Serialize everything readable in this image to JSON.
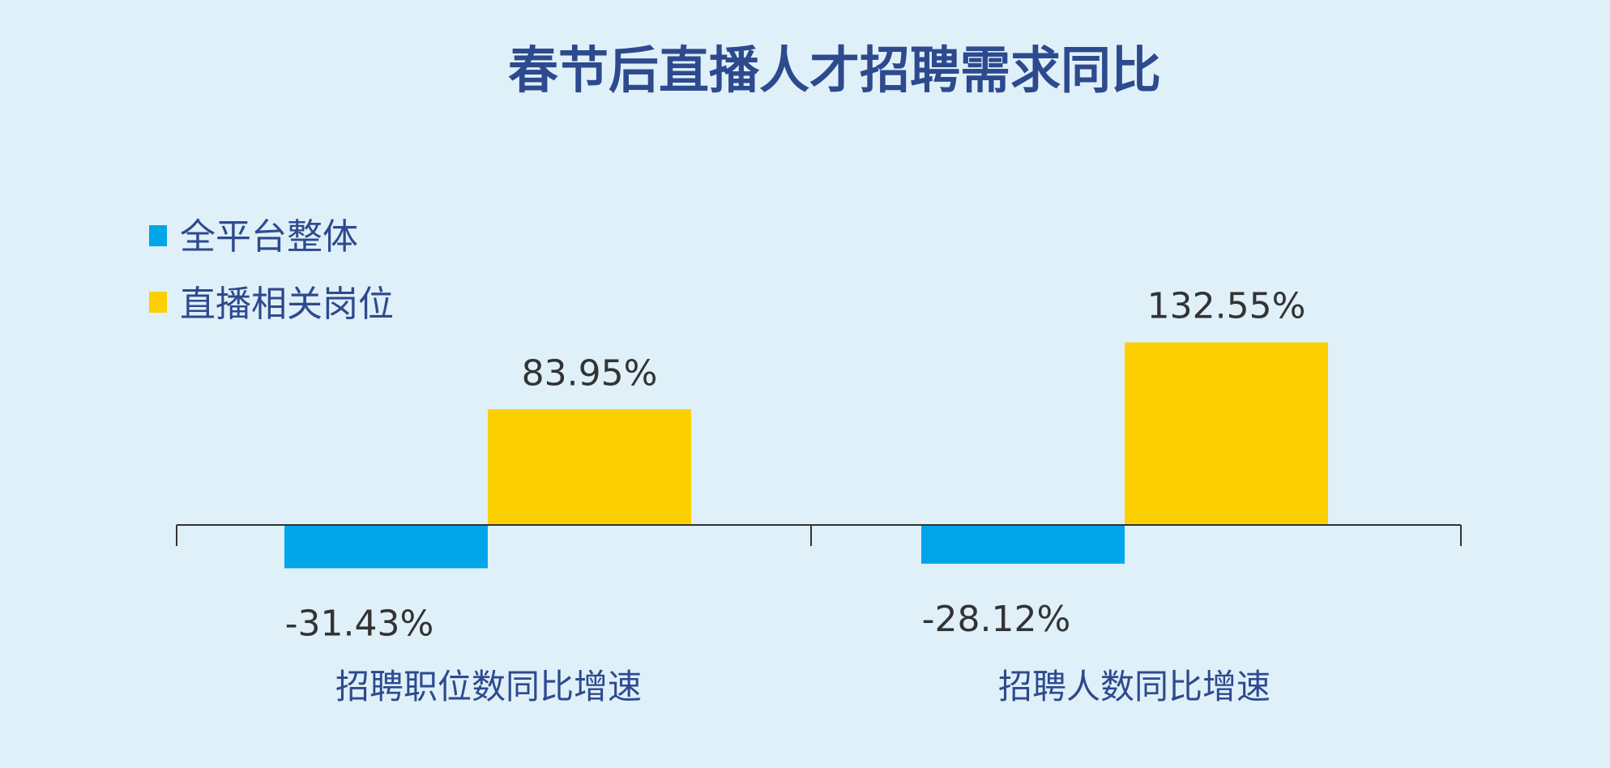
{
  "chart_data": {
    "type": "bar",
    "title": "春节后直播人才招聘需求同比",
    "categories": [
      "招聘职位数同比增速",
      "招聘人数同比增速"
    ],
    "series": [
      {
        "name": "全平台整体",
        "values": [
          -31.43,
          -28.12
        ],
        "labels": [
          "-31.43%",
          "-28.12%"
        ]
      },
      {
        "name": "直播相关岗位",
        "values": [
          83.95,
          132.55
        ],
        "labels": [
          "83.95%",
          "132.55%"
        ]
      }
    ],
    "ylim": [
      -40,
      160
    ],
    "unit": "%",
    "grid": false,
    "legend_position": "top-left"
  },
  "colors": {
    "background": "#dff0f9",
    "series": [
      "#00a6e9",
      "#fcd000"
    ],
    "title": "#2e4a8e",
    "axis": "#333333"
  }
}
